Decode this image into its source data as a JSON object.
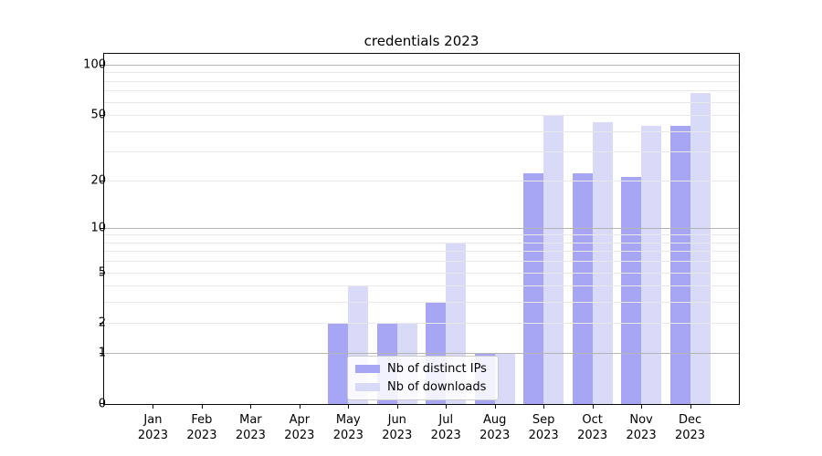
{
  "figure_title": "credentials 2023",
  "legend": {
    "items": [
      {
        "label": "Nb of distinct IPs",
        "color": "#a6a6f4"
      },
      {
        "label": "Nb of downloads",
        "color": "#d9d9f8"
      }
    ]
  },
  "chart_data": {
    "type": "bar",
    "title": "credentials 2023",
    "xlabel": "",
    "ylabel": "",
    "categories": [
      "Jan 2023",
      "Feb 2023",
      "Mar 2023",
      "Apr 2023",
      "May 2023",
      "Jun 2023",
      "Jul 2023",
      "Aug 2023",
      "Sep 2023",
      "Oct 2023",
      "Nov 2023",
      "Dec 2023"
    ],
    "x_tick_line1": [
      "Jan",
      "Feb",
      "Mar",
      "Apr",
      "May",
      "Jun",
      "Jul",
      "Aug",
      "Sep",
      "Oct",
      "Nov",
      "Dec"
    ],
    "x_tick_line2": [
      "2023",
      "2023",
      "2023",
      "2023",
      "2023",
      "2023",
      "2023",
      "2023",
      "2023",
      "2023",
      "2023",
      "2023"
    ],
    "series": [
      {
        "name": "Nb of distinct IPs",
        "color": "#a6a6f4",
        "values": [
          0,
          0,
          0,
          0,
          2,
          2,
          3,
          1,
          22,
          22,
          21,
          43
        ]
      },
      {
        "name": "Nb of downloads",
        "color": "#d9d9f8",
        "values": [
          0,
          0,
          0,
          0,
          4,
          2,
          8,
          1,
          50,
          45,
          43,
          68
        ]
      }
    ],
    "y_scale": "log1p",
    "ylim": [
      0,
      116
    ],
    "yticks": [
      0,
      1,
      2,
      5,
      10,
      20,
      50,
      100
    ],
    "ytick_labels": [
      "0",
      "1",
      "2",
      "5",
      "10",
      "20",
      "50",
      "100"
    ],
    "major_gridlines": [
      1,
      10,
      100
    ],
    "grid": "horizontal major+minor, drawn over bars",
    "legend_position": "lower center",
    "colors": {
      "major_grid": "#b4b4b4",
      "minor_grid": "#e8e8e8",
      "spine": "#0a0a0a",
      "text": "#000000",
      "background": "#ffffff"
    }
  }
}
